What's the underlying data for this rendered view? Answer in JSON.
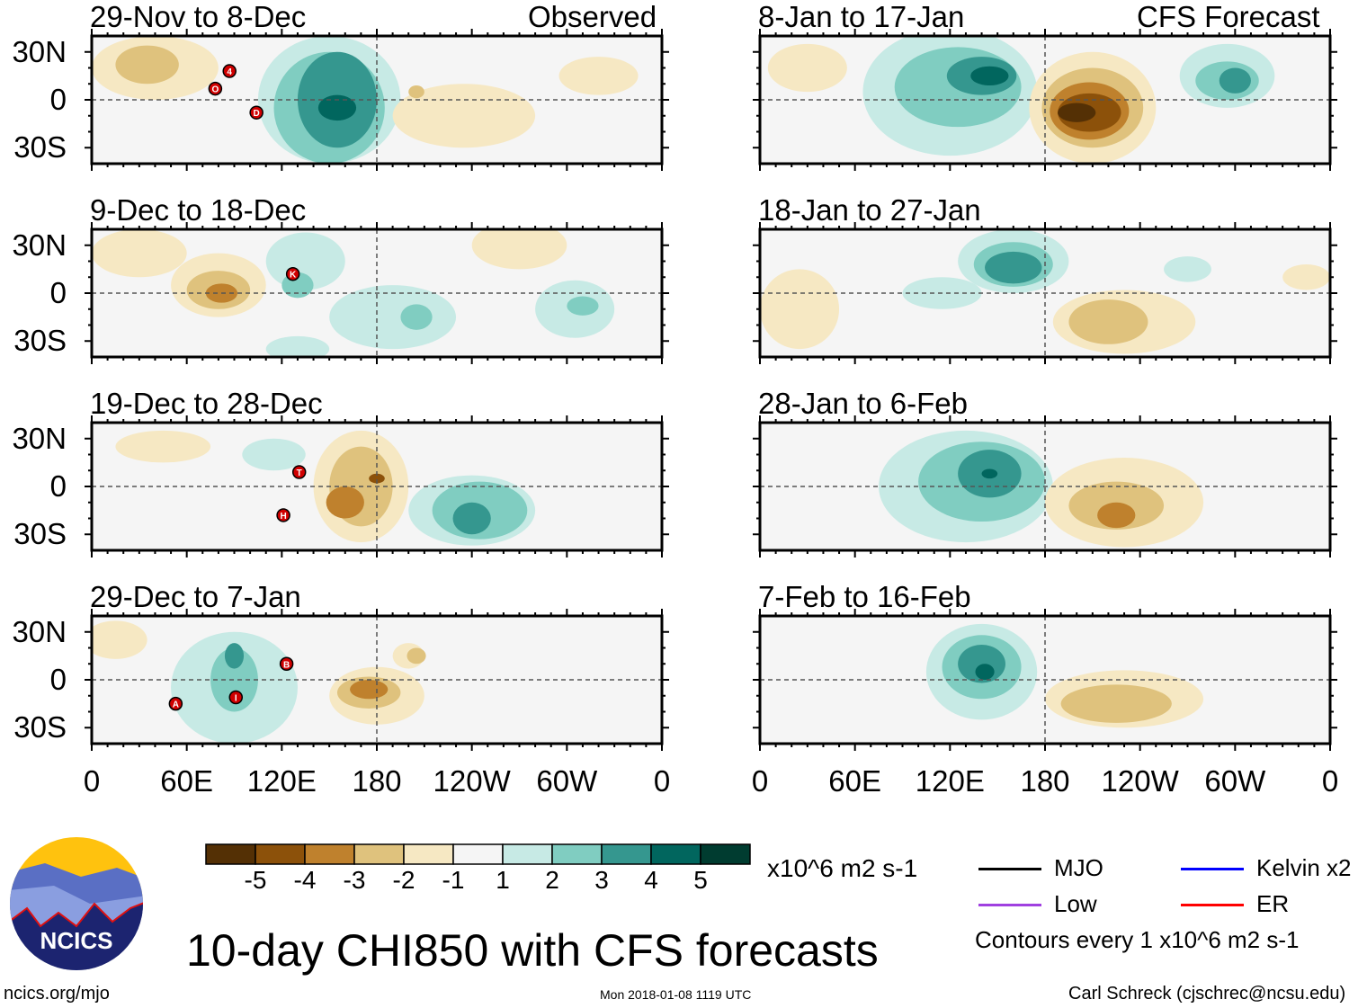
{
  "title": "10-day CHI850 with CFS forecasts",
  "url": "ncics.org/mjo",
  "timestamp": "Mon 2018-01-08 1119 UTC",
  "author": "Carl Schreck (cjschrec@ncsu.edu)",
  "logo_text": "NCICS",
  "units": "x10^6 m2 s-1",
  "contour_note": "Contours every 1 x10^6 m2 s-1",
  "observed_label": "Observed",
  "forecast_label": "CFS Forecast",
  "legend": [
    {
      "label": "MJO",
      "color": "#000000"
    },
    {
      "label": "Kelvin x2",
      "color": "#0000ff"
    },
    {
      "label": "Low",
      "color": "#a040e0"
    },
    {
      "label": "ER",
      "color": "#ff0000"
    }
  ],
  "colorbar": {
    "colors": [
      "#543005",
      "#8c510a",
      "#bf812d",
      "#dfc27d",
      "#f6e8c3",
      "#f5f5f5",
      "#c7eae5",
      "#80cdc1",
      "#35978f",
      "#01665e",
      "#003c30"
    ],
    "ticks": [
      "-5",
      "-4",
      "-3",
      "-2",
      "-1",
      "1",
      "2",
      "3",
      "4",
      "5"
    ]
  },
  "lat_ticks": [
    "30N",
    "0",
    "30S"
  ],
  "lon_ticks": [
    "0",
    "60E",
    "120E",
    "180",
    "120W",
    "60W",
    "0"
  ],
  "chart_data": {
    "type": "heatmap",
    "variable": "CHI850 anomaly",
    "lon_range": [
      0,
      360
    ],
    "lat_range": [
      -40,
      40
    ],
    "panels": [
      {
        "title": "29-Nov to 8-Dec",
        "features": [
          [
            150,
            0,
            45,
            40,
            1
          ],
          [
            150,
            -5,
            35,
            35,
            2
          ],
          [
            155,
            0,
            25,
            30,
            3
          ],
          [
            155,
            -5,
            12,
            8,
            4
          ],
          [
            40,
            20,
            40,
            20,
            -1
          ],
          [
            35,
            22,
            20,
            12,
            -2
          ],
          [
            235,
            -10,
            45,
            20,
            -1
          ],
          [
            320,
            15,
            25,
            12,
            -1
          ],
          [
            205,
            5,
            5,
            4,
            -2
          ]
        ],
        "storms": [
          {
            "label": "4",
            "lon": 87,
            "lat": 18
          },
          {
            "label": "O",
            "lon": 78,
            "lat": 7
          },
          {
            "label": "D",
            "lon": 104,
            "lat": -8
          }
        ]
      },
      {
        "title": "9-Dec to 18-Dec",
        "features": [
          [
            80,
            5,
            30,
            20,
            -1
          ],
          [
            80,
            2,
            20,
            12,
            -2
          ],
          [
            82,
            0,
            10,
            6,
            -3
          ],
          [
            30,
            25,
            30,
            15,
            -1
          ],
          [
            270,
            30,
            30,
            15,
            -1
          ],
          [
            135,
            20,
            25,
            18,
            1
          ],
          [
            130,
            5,
            10,
            8,
            2
          ],
          [
            190,
            -15,
            40,
            20,
            1
          ],
          [
            205,
            -15,
            10,
            8,
            2
          ],
          [
            305,
            -10,
            25,
            18,
            1
          ],
          [
            310,
            -8,
            10,
            6,
            2
          ],
          [
            130,
            -35,
            20,
            8,
            1
          ]
        ],
        "storms": [
          {
            "label": "K",
            "lon": 127,
            "lat": 12
          }
        ]
      },
      {
        "title": "19-Dec to 28-Dec",
        "features": [
          [
            170,
            0,
            30,
            35,
            -1
          ],
          [
            170,
            0,
            20,
            25,
            -2
          ],
          [
            160,
            -10,
            12,
            10,
            -3
          ],
          [
            180,
            5,
            5,
            3,
            -4
          ],
          [
            240,
            -15,
            40,
            22,
            1
          ],
          [
            245,
            -15,
            30,
            18,
            2
          ],
          [
            240,
            -20,
            12,
            10,
            3
          ],
          [
            45,
            25,
            30,
            10,
            -1
          ],
          [
            115,
            20,
            20,
            10,
            1
          ]
        ],
        "storms": [
          {
            "label": "T",
            "lon": 131,
            "lat": 9
          },
          {
            "label": "H",
            "lon": 121,
            "lat": -18
          }
        ]
      },
      {
        "title": "29-Dec to 7-Jan",
        "features": [
          [
            90,
            -5,
            40,
            35,
            1
          ],
          [
            90,
            0,
            15,
            20,
            2
          ],
          [
            90,
            15,
            6,
            8,
            3
          ],
          [
            180,
            -10,
            30,
            18,
            -1
          ],
          [
            175,
            -8,
            20,
            10,
            -2
          ],
          [
            175,
            -6,
            12,
            6,
            -3
          ],
          [
            200,
            15,
            10,
            8,
            -1
          ],
          [
            205,
            15,
            6,
            5,
            -2
          ],
          [
            15,
            25,
            20,
            12,
            -1
          ]
        ],
        "storms": [
          {
            "label": "B",
            "lon": 123,
            "lat": 10
          },
          {
            "label": "A",
            "lon": 53,
            "lat": -15
          },
          {
            "label": "I",
            "lon": 91,
            "lat": -11
          }
        ]
      },
      {
        "title": "8-Jan to 17-Jan",
        "features": [
          [
            120,
            5,
            55,
            40,
            1
          ],
          [
            125,
            8,
            40,
            25,
            2
          ],
          [
            140,
            15,
            22,
            12,
            3
          ],
          [
            145,
            15,
            12,
            6,
            4
          ],
          [
            295,
            15,
            30,
            20,
            1
          ],
          [
            295,
            12,
            20,
            12,
            2
          ],
          [
            300,
            12,
            10,
            8,
            3
          ],
          [
            210,
            -5,
            40,
            35,
            -1
          ],
          [
            210,
            -5,
            32,
            25,
            -2
          ],
          [
            208,
            -7,
            25,
            18,
            -3
          ],
          [
            208,
            -8,
            20,
            12,
            -4
          ],
          [
            200,
            -8,
            12,
            6,
            -5
          ],
          [
            30,
            20,
            25,
            15,
            -1
          ]
        ],
        "storms": []
      },
      {
        "title": "18-Jan to 27-Jan",
        "features": [
          [
            160,
            20,
            35,
            20,
            1
          ],
          [
            160,
            18,
            25,
            14,
            2
          ],
          [
            160,
            16,
            18,
            10,
            3
          ],
          [
            115,
            0,
            25,
            10,
            1
          ],
          [
            270,
            15,
            15,
            8,
            1
          ],
          [
            230,
            -18,
            45,
            20,
            -1
          ],
          [
            220,
            -18,
            25,
            14,
            -2
          ],
          [
            25,
            -10,
            25,
            25,
            -1
          ],
          [
            345,
            10,
            15,
            8,
            -1
          ]
        ],
        "storms": []
      },
      {
        "title": "28-Jan to 6-Feb",
        "features": [
          [
            130,
            0,
            55,
            35,
            1
          ],
          [
            140,
            3,
            40,
            25,
            2
          ],
          [
            145,
            8,
            20,
            15,
            3
          ],
          [
            145,
            8,
            5,
            3,
            4
          ],
          [
            230,
            -10,
            50,
            28,
            -1
          ],
          [
            225,
            -12,
            30,
            15,
            -2
          ],
          [
            225,
            -18,
            12,
            8,
            -3
          ]
        ],
        "storms": []
      },
      {
        "title": "7-Feb to 16-Feb",
        "features": [
          [
            140,
            5,
            35,
            30,
            1
          ],
          [
            140,
            8,
            25,
            20,
            2
          ],
          [
            140,
            10,
            15,
            12,
            3
          ],
          [
            142,
            5,
            6,
            5,
            4
          ],
          [
            230,
            -12,
            50,
            18,
            -1
          ],
          [
            225,
            -15,
            35,
            12,
            -2
          ]
        ],
        "storms": []
      }
    ]
  }
}
